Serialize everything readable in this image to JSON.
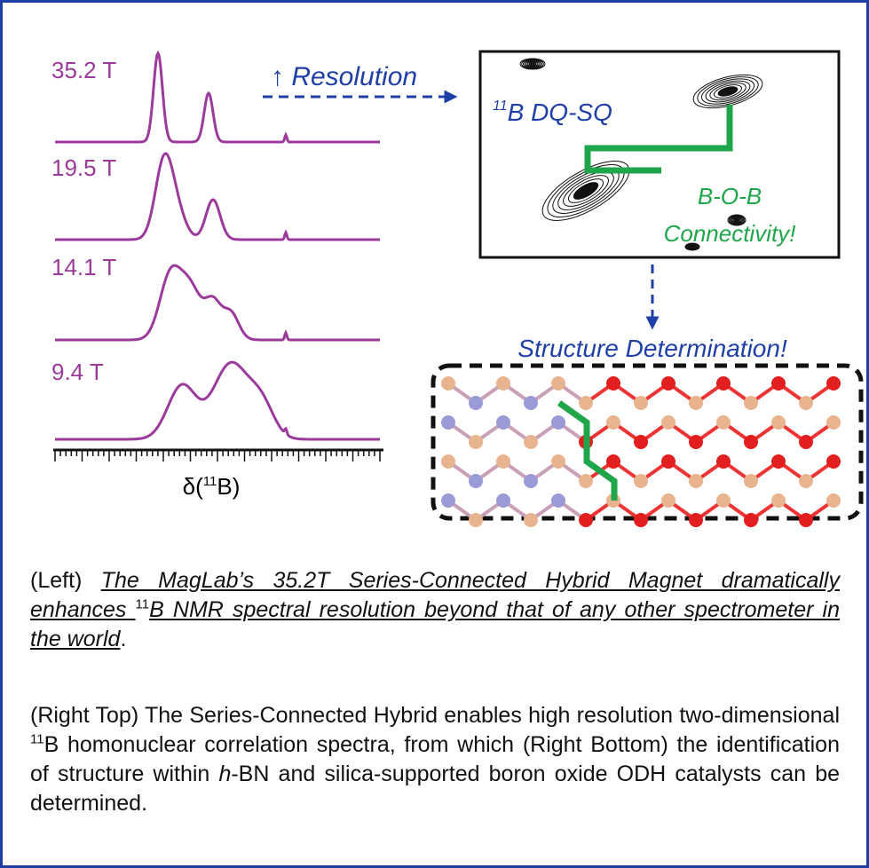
{
  "spectra": {
    "labels": [
      "35.2 T",
      "19.5 T",
      "14.1 T",
      "9.4 T"
    ],
    "axis_label": {
      "prefix": "δ(",
      "sup": "11",
      "suffix": "B)"
    }
  },
  "arrow_label": "↑ Resolution",
  "dqsq": {
    "title_sup": "11",
    "title": "B DQ-SQ",
    "line1": "B-O-B",
    "line2": "Connectivity!"
  },
  "structure_label": "Structure Determination!",
  "caption": {
    "p1": {
      "lead": "(Left) ",
      "u1": "The MagLab’s 35.2T Series-Connected Hybrid Magnet dramatically enhances ",
      "sup": "11",
      "u2": "B NMR spectral resolution beyond that of any other spectrometer in the world",
      "end": "."
    },
    "p2": {
      "t1": "(Right Top) The Series-Connected Hybrid enables high resolution two-dimensional ",
      "sup": "11",
      "t2": "B homonuclear correlation spectra, from which (Right Bottom) the identification of structure within ",
      "em": "h",
      "t3": "-BN and silica-supported boron oxide ODH catalysts can be determined."
    }
  }
}
